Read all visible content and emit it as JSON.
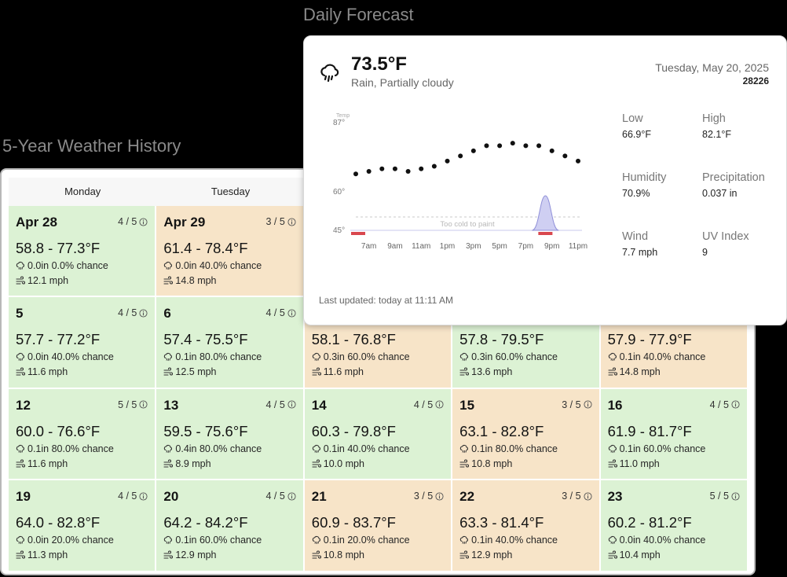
{
  "history": {
    "title": "5-Year Weather History",
    "weekdays": [
      "Monday",
      "Tuesday",
      "",
      "",
      ""
    ],
    "cells": [
      {
        "day": "Apr 28",
        "rating": "4 / 5",
        "temp": "58.8 - 77.3°F",
        "precip": "0.0in 0.0% chance",
        "wind": "12.1 mph",
        "status": "good"
      },
      {
        "day": "Apr 29",
        "rating": "3 / 5",
        "temp": "61.4 - 78.4°F",
        "precip": "0.0in 40.0% chance",
        "wind": "14.8 mph",
        "status": "fair"
      },
      {
        "day": "",
        "rating": "",
        "temp": "",
        "precip": "",
        "wind": "",
        "status": "hidden"
      },
      {
        "day": "",
        "rating": "",
        "temp": "",
        "precip": "",
        "wind": "",
        "status": "hidden"
      },
      {
        "day": "",
        "rating": "",
        "temp": "",
        "precip": "",
        "wind": "",
        "status": "hidden"
      },
      {
        "day": "5",
        "rating": "4 / 5",
        "temp": "57.7 - 77.2°F",
        "precip": "0.0in 40.0% chance",
        "wind": "11.6 mph",
        "status": "good"
      },
      {
        "day": "6",
        "rating": "4 / 5",
        "temp": "57.4 - 75.5°F",
        "precip": "0.1in 80.0% chance",
        "wind": "12.5 mph",
        "status": "good"
      },
      {
        "day": "",
        "rating": "",
        "temp": "58.1 - 76.8°F",
        "precip": "0.3in 60.0% chance",
        "wind": "11.6 mph",
        "status": "fair"
      },
      {
        "day": "",
        "rating": "",
        "temp": "57.8 - 79.5°F",
        "precip": "0.3in 60.0% chance",
        "wind": "13.6 mph",
        "status": "good"
      },
      {
        "day": "",
        "rating": "",
        "temp": "57.9 - 77.9°F",
        "precip": "0.1in 40.0% chance",
        "wind": "14.8 mph",
        "status": "fair"
      },
      {
        "day": "12",
        "rating": "5 / 5",
        "temp": "60.0 - 76.6°F",
        "precip": "0.1in 80.0% chance",
        "wind": "11.6 mph",
        "status": "good"
      },
      {
        "day": "13",
        "rating": "4 / 5",
        "temp": "59.5 - 75.6°F",
        "precip": "0.4in 80.0% chance",
        "wind": "8.9 mph",
        "status": "good"
      },
      {
        "day": "14",
        "rating": "4 / 5",
        "temp": "60.3 - 79.8°F",
        "precip": "0.1in 40.0% chance",
        "wind": "10.0 mph",
        "status": "good"
      },
      {
        "day": "15",
        "rating": "3 / 5",
        "temp": "63.1 - 82.8°F",
        "precip": "0.1in 80.0% chance",
        "wind": "10.8 mph",
        "status": "fair"
      },
      {
        "day": "16",
        "rating": "4 / 5",
        "temp": "61.9 - 81.7°F",
        "precip": "0.1in 60.0% chance",
        "wind": "11.0 mph",
        "status": "good"
      },
      {
        "day": "19",
        "rating": "4 / 5",
        "temp": "64.0 - 82.8°F",
        "precip": "0.0in 20.0% chance",
        "wind": "11.3 mph",
        "status": "good"
      },
      {
        "day": "20",
        "rating": "4 / 5",
        "temp": "64.2 - 84.2°F",
        "precip": "0.1in 60.0% chance",
        "wind": "12.9 mph",
        "status": "good"
      },
      {
        "day": "21",
        "rating": "3 / 5",
        "temp": "60.9 - 83.7°F",
        "precip": "0.1in 20.0% chance",
        "wind": "10.8 mph",
        "status": "fair"
      },
      {
        "day": "22",
        "rating": "3 / 5",
        "temp": "63.3 - 81.4°F",
        "precip": "0.1in 40.0% chance",
        "wind": "12.9 mph",
        "status": "fair"
      },
      {
        "day": "23",
        "rating": "5 / 5",
        "temp": "60.2 - 81.2°F",
        "precip": "0.0in 40.0% chance",
        "wind": "10.4 mph",
        "status": "good"
      }
    ]
  },
  "forecast": {
    "title": "Daily Forecast",
    "temp": "73.5°F",
    "condition": "Rain, Partially cloudy",
    "date": "Tuesday, May 20, 2025",
    "zip": "28226",
    "stats": {
      "low_label": "Low",
      "low": "66.9°F",
      "high_label": "High",
      "high": "82.1°F",
      "humidity_label": "Humidity",
      "humidity": "70.9%",
      "precip_label": "Precipitation",
      "precip": "0.037 in",
      "wind_label": "Wind",
      "wind": "7.7 mph",
      "uv_label": "UV Index",
      "uv": "9"
    },
    "updated": "Last updated: today at 11:11 AM"
  },
  "chart_data": {
    "type": "line",
    "ylabel": "Temp",
    "ylim": [
      45,
      87
    ],
    "yticks": [
      "87°",
      "60°",
      "45°"
    ],
    "xticks": [
      "7am",
      "9am",
      "11am",
      "1pm",
      "3pm",
      "5pm",
      "7pm",
      "9pm",
      "11pm"
    ],
    "series": [
      {
        "name": "",
        "x": [
          6,
          7,
          8,
          9,
          10,
          11,
          12,
          13,
          14,
          15,
          16,
          17,
          18,
          19,
          20,
          21,
          22,
          23
        ],
        "values": [
          67,
          68,
          69,
          69,
          68,
          69,
          70,
          72,
          74,
          76,
          78,
          78,
          79,
          78,
          78,
          76,
          74,
          72
        ]
      }
    ],
    "annotation": "Too cold to paint",
    "precip_peak_hour": 20.5
  }
}
